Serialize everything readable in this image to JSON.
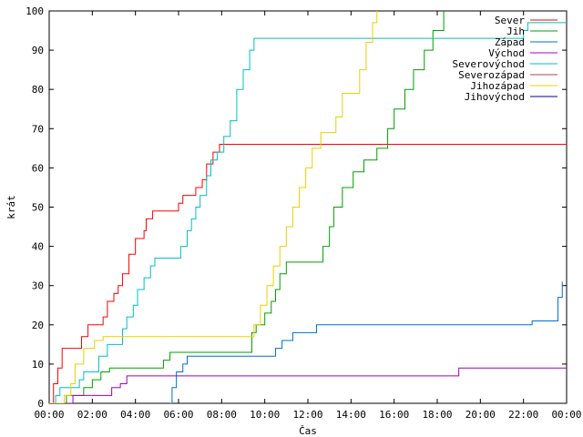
{
  "chart_data": {
    "type": "line",
    "title": "",
    "xlabel": "Čas",
    "ylabel": "krát",
    "xlim": [
      0,
      24
    ],
    "ylim": [
      0,
      100
    ],
    "x_ticks": [
      0,
      2,
      4,
      6,
      8,
      10,
      12,
      14,
      16,
      18,
      20,
      22,
      24
    ],
    "x_tick_labels": [
      "00:00",
      "02:00",
      "04:00",
      "06:00",
      "08:00",
      "10:00",
      "12:00",
      "14:00",
      "16:00",
      "18:00",
      "20:00",
      "22:00",
      "00:00"
    ],
    "y_ticks": [
      0,
      10,
      20,
      30,
      40,
      50,
      60,
      70,
      80,
      90,
      100
    ],
    "y_tick_labels": [
      "0",
      "10",
      "20",
      "30",
      "40",
      "50",
      "60",
      "70",
      "80",
      "90",
      "100"
    ],
    "grid": false,
    "legend_position": "top-right",
    "series": [
      {
        "name": "Sever",
        "color": "#ff0000",
        "points": [
          [
            0,
            0
          ],
          [
            0.2,
            5
          ],
          [
            0.4,
            9
          ],
          [
            0.6,
            14
          ],
          [
            1.3,
            14
          ],
          [
            1.5,
            17
          ],
          [
            1.8,
            20
          ],
          [
            2.1,
            20
          ],
          [
            2.5,
            22
          ],
          [
            2.7,
            26
          ],
          [
            3.0,
            28
          ],
          [
            3.2,
            30
          ],
          [
            3.4,
            33
          ],
          [
            3.7,
            38
          ],
          [
            4.0,
            42
          ],
          [
            4.4,
            44
          ],
          [
            4.5,
            47
          ],
          [
            4.8,
            49
          ],
          [
            5.8,
            49
          ],
          [
            6.0,
            51
          ],
          [
            6.2,
            53
          ],
          [
            6.6,
            53
          ],
          [
            6.8,
            55
          ],
          [
            7.1,
            57
          ],
          [
            7.3,
            61
          ],
          [
            7.6,
            64
          ],
          [
            7.9,
            66
          ],
          [
            24,
            66
          ]
        ]
      },
      {
        "name": "Jih",
        "color": "#00a000",
        "points": [
          [
            0,
            0
          ],
          [
            0.8,
            2
          ],
          [
            1.6,
            4
          ],
          [
            2.0,
            6
          ],
          [
            2.4,
            8
          ],
          [
            2.8,
            9
          ],
          [
            5.0,
            9
          ],
          [
            5.3,
            11
          ],
          [
            5.6,
            13
          ],
          [
            9.2,
            13
          ],
          [
            9.4,
            18
          ],
          [
            9.6,
            20
          ],
          [
            10.0,
            23
          ],
          [
            10.3,
            26
          ],
          [
            10.5,
            29
          ],
          [
            10.7,
            33
          ],
          [
            11.0,
            36
          ],
          [
            12.5,
            36
          ],
          [
            12.7,
            40
          ],
          [
            13.0,
            45
          ],
          [
            13.2,
            50
          ],
          [
            13.6,
            55
          ],
          [
            14.1,
            59
          ],
          [
            14.6,
            62
          ],
          [
            15.2,
            65
          ],
          [
            15.7,
            70
          ],
          [
            16.0,
            75
          ],
          [
            16.5,
            80
          ],
          [
            16.9,
            85
          ],
          [
            17.4,
            90
          ],
          [
            17.8,
            95
          ],
          [
            18.3,
            100
          ]
        ]
      },
      {
        "name": "Západ",
        "color": "#0070d0",
        "points": [
          [
            5.6,
            0
          ],
          [
            5.7,
            4
          ],
          [
            5.9,
            8
          ],
          [
            6.2,
            10
          ],
          [
            6.4,
            12
          ],
          [
            10.0,
            12
          ],
          [
            10.5,
            14
          ],
          [
            10.8,
            16
          ],
          [
            11.3,
            18
          ],
          [
            12.4,
            20
          ],
          [
            22.0,
            20
          ],
          [
            22.4,
            21
          ],
          [
            23.3,
            21
          ],
          [
            23.6,
            27
          ],
          [
            23.8,
            31
          ]
        ]
      },
      {
        "name": "Východ",
        "color": "#a000c0",
        "points": [
          [
            0,
            0
          ],
          [
            1.1,
            2
          ],
          [
            2.6,
            2
          ],
          [
            2.9,
            4
          ],
          [
            3.3,
            5
          ],
          [
            3.6,
            7
          ],
          [
            18.7,
            7
          ],
          [
            19.0,
            9
          ],
          [
            24,
            9
          ]
        ]
      },
      {
        "name": "Severovýchod",
        "color": "#00c0c0",
        "points": [
          [
            0,
            0
          ],
          [
            0.3,
            2
          ],
          [
            0.5,
            4
          ],
          [
            1.1,
            4
          ],
          [
            1.4,
            6
          ],
          [
            1.6,
            8
          ],
          [
            2.3,
            12
          ],
          [
            2.7,
            15
          ],
          [
            3.1,
            15
          ],
          [
            3.4,
            19
          ],
          [
            3.6,
            22
          ],
          [
            3.9,
            25
          ],
          [
            4.1,
            29
          ],
          [
            4.4,
            32
          ],
          [
            4.7,
            35
          ],
          [
            4.9,
            37
          ],
          [
            5.9,
            37
          ],
          [
            6.1,
            40
          ],
          [
            6.4,
            44
          ],
          [
            6.6,
            47
          ],
          [
            6.8,
            50
          ],
          [
            7.0,
            53
          ],
          [
            7.3,
            58
          ],
          [
            7.5,
            62
          ],
          [
            7.8,
            64
          ],
          [
            8.1,
            68
          ],
          [
            8.4,
            72
          ],
          [
            8.7,
            80
          ],
          [
            9.0,
            85
          ],
          [
            9.3,
            90
          ],
          [
            9.5,
            93
          ],
          [
            21.8,
            93
          ],
          [
            22.0,
            95
          ],
          [
            22.2,
            97
          ],
          [
            24,
            97
          ]
        ]
      },
      {
        "name": "Severozápad",
        "color": "#c04040",
        "points": []
      },
      {
        "name": "Jihozápad",
        "color": "#e8d000",
        "points": [
          [
            0,
            0
          ],
          [
            0.7,
            2
          ],
          [
            1.0,
            5
          ],
          [
            1.2,
            10
          ],
          [
            1.6,
            14
          ],
          [
            2.1,
            16
          ],
          [
            2.5,
            17
          ],
          [
            9.2,
            17
          ],
          [
            9.5,
            20
          ],
          [
            9.8,
            25
          ],
          [
            10.1,
            30
          ],
          [
            10.4,
            35
          ],
          [
            10.7,
            40
          ],
          [
            11.0,
            45
          ],
          [
            11.3,
            50
          ],
          [
            11.6,
            55
          ],
          [
            11.9,
            60
          ],
          [
            12.2,
            65
          ],
          [
            12.6,
            69
          ],
          [
            13.3,
            73
          ],
          [
            13.6,
            79
          ],
          [
            14.1,
            79
          ],
          [
            14.4,
            85
          ],
          [
            14.7,
            92
          ],
          [
            15.0,
            97
          ],
          [
            15.2,
            100
          ]
        ]
      },
      {
        "name": "Jihovýchod",
        "color": "#00008b",
        "points": []
      }
    ]
  }
}
